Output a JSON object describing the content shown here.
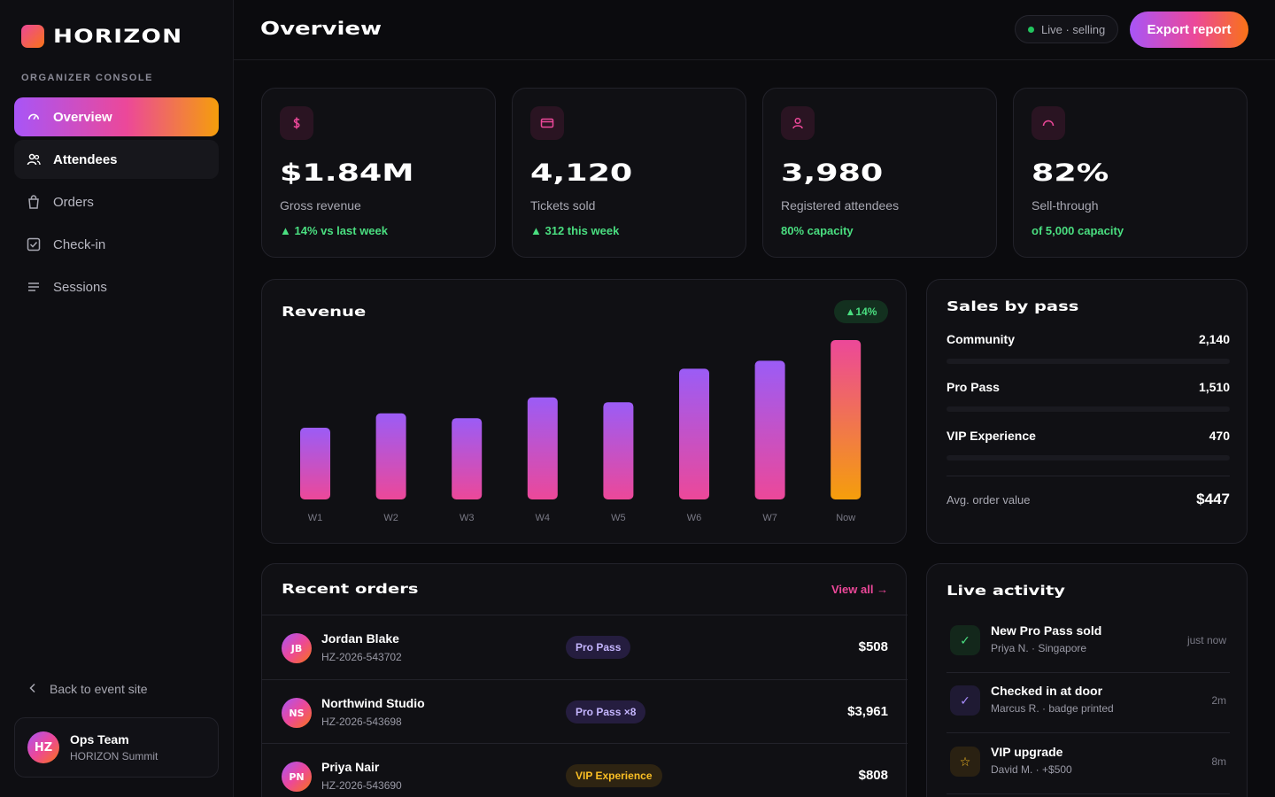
{
  "brand": {
    "name": "HORIZON",
    "console_label": "ORGANIZER CONSOLE"
  },
  "nav": [
    {
      "label": "Overview",
      "icon": "gauge-icon"
    },
    {
      "label": "Attendees",
      "icon": "users-icon"
    },
    {
      "label": "Orders",
      "icon": "bag-icon"
    },
    {
      "label": "Check-in",
      "icon": "check-square-icon"
    },
    {
      "label": "Sessions",
      "icon": "list-icon"
    }
  ],
  "sidebar_footer": {
    "back_label": "Back to event site",
    "user": {
      "initials": "HZ",
      "name": "Ops Team",
      "org": "HORIZON Summit"
    }
  },
  "header": {
    "title": "Overview",
    "live_status": "Live · selling",
    "export_label": "Export report"
  },
  "stats": [
    {
      "value": "$1.84M",
      "label": "Gross revenue",
      "delta": "▲ 14% vs last week",
      "icon": "dollar-icon"
    },
    {
      "value": "4,120",
      "label": "Tickets sold",
      "delta": "▲ 312 this week",
      "icon": "ticket-icon"
    },
    {
      "value": "3,980",
      "label": "Registered attendees",
      "delta": "80% capacity",
      "icon": "user-icon"
    },
    {
      "value": "82%",
      "label": "Sell-through",
      "delta": "of 5,000 capacity",
      "icon": "gauge-icon"
    }
  ],
  "revenue": {
    "title": "Revenue",
    "delta_badge": "▲14%"
  },
  "chart_data": {
    "type": "bar",
    "title": "Revenue",
    "categories": [
      "W1",
      "W2",
      "W3",
      "W4",
      "W5",
      "W6",
      "W7",
      "Now"
    ],
    "values": [
      45,
      54,
      51,
      64,
      61,
      82,
      87,
      100
    ],
    "ylim": [
      0,
      100
    ],
    "grid": false,
    "highlight_last": true,
    "colors": {
      "bar_top": "#9b5cf6",
      "bar_bottom": "#ec4899",
      "last_top": "#ec4899",
      "last_bottom": "#f59e0b"
    }
  },
  "sales_by_pass": {
    "title": "Sales by pass",
    "items": [
      {
        "name": "Community",
        "count": "2,140"
      },
      {
        "name": "Pro Pass",
        "count": "1,510"
      },
      {
        "name": "VIP Experience",
        "count": "470"
      }
    ],
    "avg_label": "Avg. order value",
    "avg_value": "$447"
  },
  "recent_orders": {
    "title": "Recent orders",
    "view_all": "View all →",
    "rows": [
      {
        "initials": "JB",
        "name": "Jordan Blake",
        "id": "HZ-2026-543702",
        "pass": "Pro Pass",
        "pass_style": "purple",
        "amount": "$508"
      },
      {
        "initials": "NS",
        "name": "Northwind Studio",
        "id": "HZ-2026-543698",
        "pass": "Pro Pass ×8",
        "pass_style": "purple",
        "amount": "$3,961"
      },
      {
        "initials": "PN",
        "name": "Priya Nair",
        "id": "HZ-2026-543690",
        "pass": "VIP Experience",
        "pass_style": "gold",
        "amount": "$808"
      }
    ]
  },
  "live_activity": {
    "title": "Live activity",
    "items": [
      {
        "title": "New Pro Pass sold",
        "sub": "Priya N. · Singapore",
        "time": "just now",
        "icon": "check-icon",
        "glyph": "✓",
        "color": "#4ade80",
        "bg": "#13271b"
      },
      {
        "title": "Checked in at door",
        "sub": "Marcus R. · badge printed",
        "time": "2m",
        "icon": "check-icon",
        "glyph": "✓",
        "color": "#a78bfa",
        "bg": "#1f1a33"
      },
      {
        "title": "VIP upgrade",
        "sub": "David M. · +$500",
        "time": "8m",
        "icon": "star-icon",
        "glyph": "☆",
        "color": "#fbbf24",
        "bg": "#2a2112"
      }
    ]
  }
}
